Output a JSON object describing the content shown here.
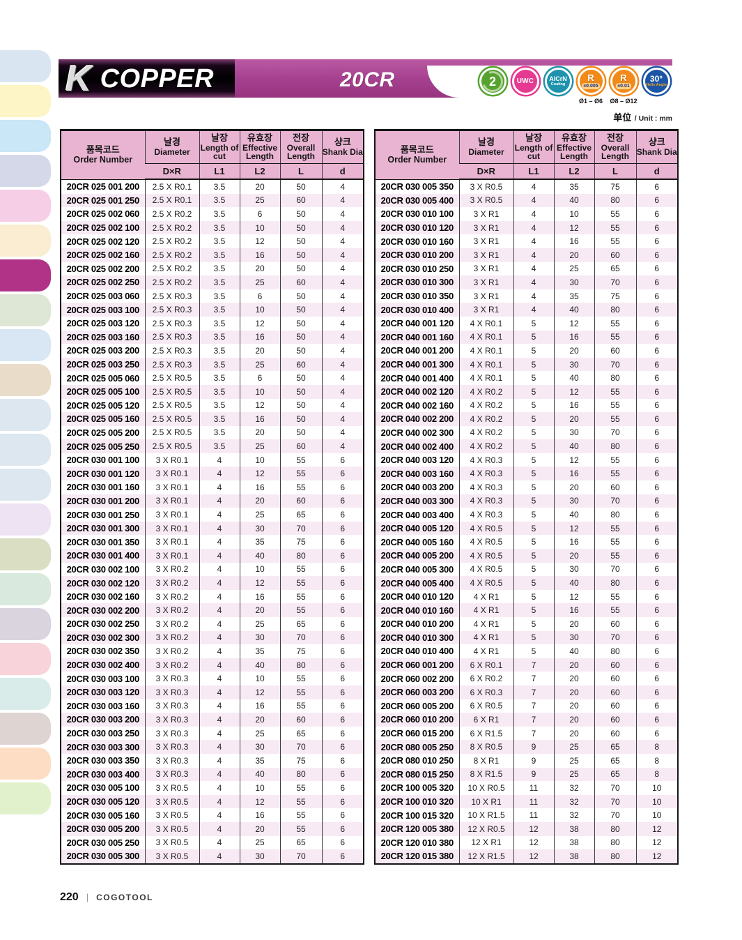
{
  "page": {
    "unit_note_cn": "单位",
    "unit_note_en": "/ Unit : mm",
    "page_number": "220",
    "brand": "COGOTOOL"
  },
  "header": {
    "series_letter": "K",
    "series_name": "COPPER",
    "model": "20CR",
    "badges": [
      {
        "name": "flute-count",
        "label": "2",
        "color": "#55a32e"
      },
      {
        "name": "uwc",
        "label": "UWC",
        "color": "#e63a92"
      },
      {
        "name": "alcrn-coating",
        "label": "AlCrN",
        "sub": "Coating",
        "color": "#1f93ad"
      },
      {
        "name": "radius-tolerance-005",
        "label": "R",
        "sub": "±0.005",
        "note": "Ø1 – Ø6",
        "color": "#f28a1a"
      },
      {
        "name": "radius-tolerance-01",
        "label": "R",
        "sub": "±0.01",
        "note": "Ø8 – Ø12",
        "color": "#f28a1a"
      },
      {
        "name": "helix-angle",
        "label": "30°",
        "sub": "Helix Angle",
        "color": "#1c55a5"
      }
    ]
  },
  "table": {
    "columns": [
      {
        "ko": "품목코드",
        "en": "Order Number",
        "sym": ""
      },
      {
        "ko": "날경",
        "en": "Diameter",
        "sym": "D×R"
      },
      {
        "ko": "날장",
        "en": "Length of cut",
        "sym": "L1"
      },
      {
        "ko": "유효장",
        "en": "Effective Length",
        "sym": "L2"
      },
      {
        "ko": "전장",
        "en": "Overall Length",
        "sym": "L"
      },
      {
        "ko": "샹크",
        "en": "Shank Dia",
        "sym": "d"
      }
    ]
  },
  "left_table": {
    "rows": [
      [
        "20CR 025 001 200",
        "2.5 X R0.1",
        "3.5",
        "20",
        "50",
        "4"
      ],
      [
        "20CR 025 001 250",
        "2.5 X R0.1",
        "3.5",
        "25",
        "60",
        "4"
      ],
      [
        "20CR 025 002 060",
        "2.5 X R0.2",
        "3.5",
        "6",
        "50",
        "4"
      ],
      [
        "20CR 025 002 100",
        "2.5 X R0.2",
        "3.5",
        "10",
        "50",
        "4"
      ],
      [
        "20CR 025 002 120",
        "2.5 X R0.2",
        "3.5",
        "12",
        "50",
        "4"
      ],
      [
        "20CR 025 002 160",
        "2.5 X R0.2",
        "3.5",
        "16",
        "50",
        "4"
      ],
      [
        "20CR 025 002 200",
        "2.5 X R0.2",
        "3.5",
        "20",
        "50",
        "4"
      ],
      [
        "20CR 025 002 250",
        "2.5 X R0.2",
        "3.5",
        "25",
        "60",
        "4"
      ],
      [
        "20CR 025 003 060",
        "2.5 X R0.3",
        "3.5",
        "6",
        "50",
        "4"
      ],
      [
        "20CR 025 003 100",
        "2.5 X R0.3",
        "3.5",
        "10",
        "50",
        "4"
      ],
      [
        "20CR 025 003 120",
        "2.5 X R0.3",
        "3.5",
        "12",
        "50",
        "4"
      ],
      [
        "20CR 025 003 160",
        "2.5 X R0.3",
        "3.5",
        "16",
        "50",
        "4"
      ],
      [
        "20CR 025 003 200",
        "2.5 X R0.3",
        "3.5",
        "20",
        "50",
        "4"
      ],
      [
        "20CR 025 003 250",
        "2.5 X R0.3",
        "3.5",
        "25",
        "60",
        "4"
      ],
      [
        "20CR 025 005 060",
        "2.5 X R0.5",
        "3.5",
        "6",
        "50",
        "4"
      ],
      [
        "20CR 025 005 100",
        "2.5 X R0.5",
        "3.5",
        "10",
        "50",
        "4"
      ],
      [
        "20CR 025 005 120",
        "2.5 X R0.5",
        "3.5",
        "12",
        "50",
        "4"
      ],
      [
        "20CR 025 005 160",
        "2.5 X R0.5",
        "3.5",
        "16",
        "50",
        "4"
      ],
      [
        "20CR 025 005 200",
        "2.5 X R0.5",
        "3.5",
        "20",
        "50",
        "4"
      ],
      [
        "20CR 025 005 250",
        "2.5 X R0.5",
        "3.5",
        "25",
        "60",
        "4"
      ],
      [
        "20CR 030 001 100",
        "3 X R0.1",
        "4",
        "10",
        "55",
        "6"
      ],
      [
        "20CR 030 001 120",
        "3 X R0.1",
        "4",
        "12",
        "55",
        "6"
      ],
      [
        "20CR 030 001 160",
        "3 X R0.1",
        "4",
        "16",
        "55",
        "6"
      ],
      [
        "20CR 030 001 200",
        "3 X R0.1",
        "4",
        "20",
        "60",
        "6"
      ],
      [
        "20CR 030 001 250",
        "3 X R0.1",
        "4",
        "25",
        "65",
        "6"
      ],
      [
        "20CR 030 001 300",
        "3 X R0.1",
        "4",
        "30",
        "70",
        "6"
      ],
      [
        "20CR 030 001 350",
        "3 X R0.1",
        "4",
        "35",
        "75",
        "6"
      ],
      [
        "20CR 030 001 400",
        "3 X R0.1",
        "4",
        "40",
        "80",
        "6"
      ],
      [
        "20CR 030 002 100",
        "3 X R0.2",
        "4",
        "10",
        "55",
        "6"
      ],
      [
        "20CR 030 002 120",
        "3 X R0.2",
        "4",
        "12",
        "55",
        "6"
      ],
      [
        "20CR 030 002 160",
        "3 X R0.2",
        "4",
        "16",
        "55",
        "6"
      ],
      [
        "20CR 030 002 200",
        "3 X R0.2",
        "4",
        "20",
        "55",
        "6"
      ],
      [
        "20CR 030 002 250",
        "3 X R0.2",
        "4",
        "25",
        "65",
        "6"
      ],
      [
        "20CR 030 002 300",
        "3 X R0.2",
        "4",
        "30",
        "70",
        "6"
      ],
      [
        "20CR 030 002 350",
        "3 X R0.2",
        "4",
        "35",
        "75",
        "6"
      ],
      [
        "20CR 030 002 400",
        "3 X R0.2",
        "4",
        "40",
        "80",
        "6"
      ],
      [
        "20CR 030 003 100",
        "3 X R0.3",
        "4",
        "10",
        "55",
        "6"
      ],
      [
        "20CR 030 003 120",
        "3 X R0.3",
        "4",
        "12",
        "55",
        "6"
      ],
      [
        "20CR 030 003 160",
        "3 X R0.3",
        "4",
        "16",
        "55",
        "6"
      ],
      [
        "20CR 030 003 200",
        "3 X R0.3",
        "4",
        "20",
        "60",
        "6"
      ],
      [
        "20CR 030 003 250",
        "3 X R0.3",
        "4",
        "25",
        "65",
        "6"
      ],
      [
        "20CR 030 003 300",
        "3 X R0.3",
        "4",
        "30",
        "70",
        "6"
      ],
      [
        "20CR 030 003 350",
        "3 X R0.3",
        "4",
        "35",
        "75",
        "6"
      ],
      [
        "20CR 030 003 400",
        "3 X R0.3",
        "4",
        "40",
        "80",
        "6"
      ],
      [
        "20CR 030 005 100",
        "3 X R0.5",
        "4",
        "10",
        "55",
        "6"
      ],
      [
        "20CR 030 005 120",
        "3 X R0.5",
        "4",
        "12",
        "55",
        "6"
      ],
      [
        "20CR 030 005 160",
        "3 X R0.5",
        "4",
        "16",
        "55",
        "6"
      ],
      [
        "20CR 030 005 200",
        "3 X R0.5",
        "4",
        "20",
        "55",
        "6"
      ],
      [
        "20CR 030 005 250",
        "3 X R0.5",
        "4",
        "25",
        "65",
        "6"
      ],
      [
        "20CR 030 005 300",
        "3 X R0.5",
        "4",
        "30",
        "70",
        "6"
      ]
    ]
  },
  "right_table": {
    "rows": [
      [
        "20CR 030 005 350",
        "3 X R0.5",
        "4",
        "35",
        "75",
        "6"
      ],
      [
        "20CR 030 005 400",
        "3 X R0.5",
        "4",
        "40",
        "80",
        "6"
      ],
      [
        "20CR 030 010 100",
        "3 X R1",
        "4",
        "10",
        "55",
        "6"
      ],
      [
        "20CR 030 010 120",
        "3 X R1",
        "4",
        "12",
        "55",
        "6"
      ],
      [
        "20CR 030 010 160",
        "3 X R1",
        "4",
        "16",
        "55",
        "6"
      ],
      [
        "20CR 030 010 200",
        "3 X R1",
        "4",
        "20",
        "60",
        "6"
      ],
      [
        "20CR 030 010 250",
        "3 X R1",
        "4",
        "25",
        "65",
        "6"
      ],
      [
        "20CR 030 010 300",
        "3 X R1",
        "4",
        "30",
        "70",
        "6"
      ],
      [
        "20CR 030 010 350",
        "3 X R1",
        "4",
        "35",
        "75",
        "6"
      ],
      [
        "20CR 030 010 400",
        "3 X R1",
        "4",
        "40",
        "80",
        "6"
      ],
      [
        "20CR 040 001 120",
        "4 X R0.1",
        "5",
        "12",
        "55",
        "6"
      ],
      [
        "20CR 040 001 160",
        "4 X R0.1",
        "5",
        "16",
        "55",
        "6"
      ],
      [
        "20CR 040 001 200",
        "4 X R0.1",
        "5",
        "20",
        "60",
        "6"
      ],
      [
        "20CR 040 001 300",
        "4 X R0.1",
        "5",
        "30",
        "70",
        "6"
      ],
      [
        "20CR 040 001 400",
        "4 X R0.1",
        "5",
        "40",
        "80",
        "6"
      ],
      [
        "20CR 040 002 120",
        "4 X R0.2",
        "5",
        "12",
        "55",
        "6"
      ],
      [
        "20CR 040 002 160",
        "4 X R0.2",
        "5",
        "16",
        "55",
        "6"
      ],
      [
        "20CR 040 002 200",
        "4 X R0.2",
        "5",
        "20",
        "55",
        "6"
      ],
      [
        "20CR 040 002 300",
        "4 X R0.2",
        "5",
        "30",
        "70",
        "6"
      ],
      [
        "20CR 040 002 400",
        "4 X R0.2",
        "5",
        "40",
        "80",
        "6"
      ],
      [
        "20CR 040 003 120",
        "4 X R0.3",
        "5",
        "12",
        "55",
        "6"
      ],
      [
        "20CR 040 003 160",
        "4 X R0.3",
        "5",
        "16",
        "55",
        "6"
      ],
      [
        "20CR 040 003 200",
        "4 X R0.3",
        "5",
        "20",
        "60",
        "6"
      ],
      [
        "20CR 040 003 300",
        "4 X R0.3",
        "5",
        "30",
        "70",
        "6"
      ],
      [
        "20CR 040 003 400",
        "4 X R0.3",
        "5",
        "40",
        "80",
        "6"
      ],
      [
        "20CR 040 005 120",
        "4 X R0.5",
        "5",
        "12",
        "55",
        "6"
      ],
      [
        "20CR 040 005 160",
        "4 X R0.5",
        "5",
        "16",
        "55",
        "6"
      ],
      [
        "20CR 040 005 200",
        "4 X R0.5",
        "5",
        "20",
        "55",
        "6"
      ],
      [
        "20CR 040 005 300",
        "4 X R0.5",
        "5",
        "30",
        "70",
        "6"
      ],
      [
        "20CR 040 005 400",
        "4 X R0.5",
        "5",
        "40",
        "80",
        "6"
      ],
      [
        "20CR 040 010 120",
        "4 X R1",
        "5",
        "12",
        "55",
        "6"
      ],
      [
        "20CR 040 010 160",
        "4 X R1",
        "5",
        "16",
        "55",
        "6"
      ],
      [
        "20CR 040 010 200",
        "4 X R1",
        "5",
        "20",
        "60",
        "6"
      ],
      [
        "20CR 040 010 300",
        "4 X R1",
        "5",
        "30",
        "70",
        "6"
      ],
      [
        "20CR 040 010 400",
        "4 X R1",
        "5",
        "40",
        "80",
        "6"
      ],
      [
        "20CR 060 001 200",
        "6 X R0.1",
        "7",
        "20",
        "60",
        "6"
      ],
      [
        "20CR 060 002 200",
        "6 X R0.2",
        "7",
        "20",
        "60",
        "6"
      ],
      [
        "20CR 060 003 200",
        "6 X R0.3",
        "7",
        "20",
        "60",
        "6"
      ],
      [
        "20CR 060 005 200",
        "6 X R0.5",
        "7",
        "20",
        "60",
        "6"
      ],
      [
        "20CR 060 010 200",
        "6 X R1",
        "7",
        "20",
        "60",
        "6"
      ],
      [
        "20CR 060 015 200",
        "6 X R1.5",
        "7",
        "20",
        "60",
        "6"
      ],
      [
        "20CR 080 005 250",
        "8 X R0.5",
        "9",
        "25",
        "65",
        "8"
      ],
      [
        "20CR 080 010 250",
        "8 X R1",
        "9",
        "25",
        "65",
        "8"
      ],
      [
        "20CR 080 015 250",
        "8 X R1.5",
        "9",
        "25",
        "65",
        "8"
      ],
      [
        "20CR 100 005 320",
        "10 X R0.5",
        "11",
        "32",
        "70",
        "10"
      ],
      [
        "20CR 100 010 320",
        "10 X R1",
        "11",
        "32",
        "70",
        "10"
      ],
      [
        "20CR 100 015 320",
        "10 X R1.5",
        "11",
        "32",
        "70",
        "10"
      ],
      [
        "20CR 120 005 380",
        "12 X R0.5",
        "12",
        "38",
        "80",
        "12"
      ],
      [
        "20CR 120 010 380",
        "12 X R1",
        "12",
        "38",
        "80",
        "12"
      ],
      [
        "20CR 120 015 380",
        "12 X R1.5",
        "12",
        "38",
        "80",
        "12"
      ]
    ]
  },
  "sidebar": {
    "tabs": [
      {
        "color": "#d9e6f2"
      },
      {
        "color": "#fdf5c5"
      },
      {
        "color": "#c9e7f6"
      },
      {
        "color": "#d4d8e9"
      },
      {
        "color": "#f6cfe6"
      },
      {
        "color": "#faedd2"
      },
      {
        "color": "#b13387",
        "active": true
      },
      {
        "color": "#dee6d6"
      },
      {
        "color": "#d9e6f3"
      },
      {
        "color": "#e9ddc9"
      },
      {
        "color": "#dce7f0"
      },
      {
        "color": "#dce7f0"
      },
      {
        "color": "#dce7f0"
      },
      {
        "color": "#ede3f3"
      },
      {
        "color": "#dadec2"
      },
      {
        "color": "#d9e9dd"
      },
      {
        "color": "#d9d4de"
      },
      {
        "color": "#f8d3d9"
      },
      {
        "color": "#d9ece9"
      },
      {
        "color": "#ded4d2"
      },
      {
        "color": "#fdddc3"
      },
      {
        "color": "#e1f1cb"
      }
    ]
  }
}
